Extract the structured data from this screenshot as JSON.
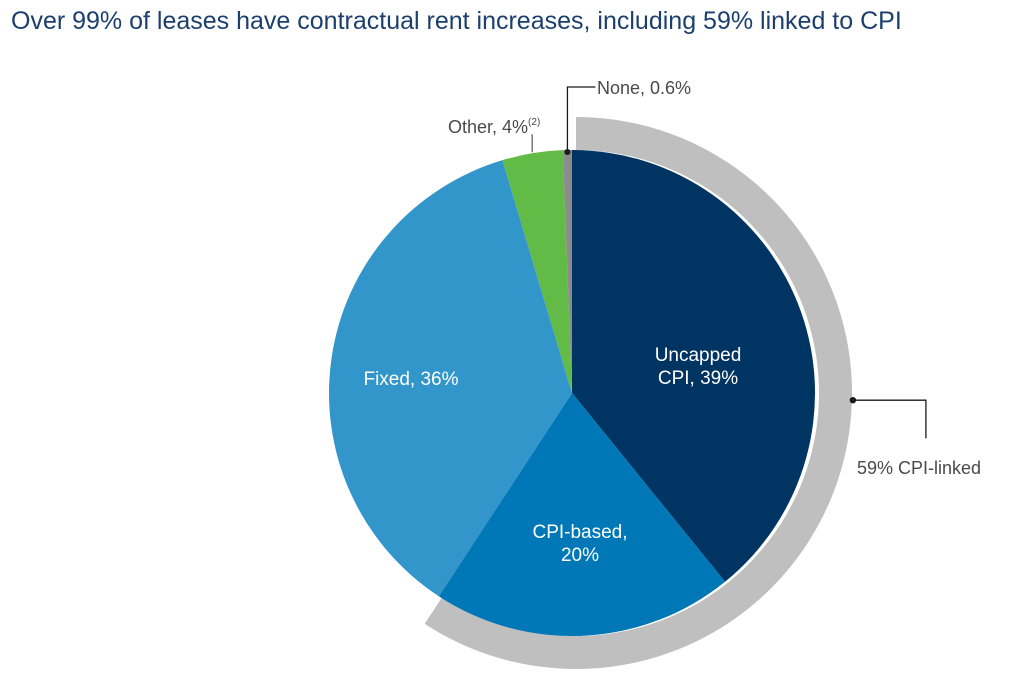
{
  "chart_data": {
    "type": "pie",
    "title": "Over 99% of leases have contractual rent increases, including 59% linked to CPI",
    "slices": [
      {
        "key": "uncapped",
        "label": "Uncapped CPI, 39%",
        "lines": [
          "Uncapped",
          "CPI, 39%"
        ],
        "value": 39,
        "color": "#003563",
        "label_position": "inside"
      },
      {
        "key": "cpi_based",
        "label": "CPI-based, 20%",
        "lines": [
          "CPI-based,",
          "20%"
        ],
        "value": 20,
        "color": "#0077b6",
        "label_position": "inside"
      },
      {
        "key": "fixed",
        "label": "Fixed, 36%",
        "lines": [
          "Fixed, 36%"
        ],
        "value": 36,
        "color": "#3396cb",
        "label_position": "inside"
      },
      {
        "key": "other",
        "label": "Other, 4%",
        "lines": [
          "Other, 4%"
        ],
        "superscript": "(2)",
        "value": 4,
        "color": "#62bb46",
        "label_position": "outside"
      },
      {
        "key": "none",
        "label": "None, 0.6%",
        "lines": [
          "None, 0.6%"
        ],
        "value": 0.6,
        "color": "#8c8c8c",
        "label_position": "outside"
      }
    ],
    "bracket": {
      "label": "59% CPI-linked",
      "value": 59,
      "covers": [
        "uncapped",
        "cpi_based"
      ],
      "color": "#bfbfbf"
    }
  }
}
